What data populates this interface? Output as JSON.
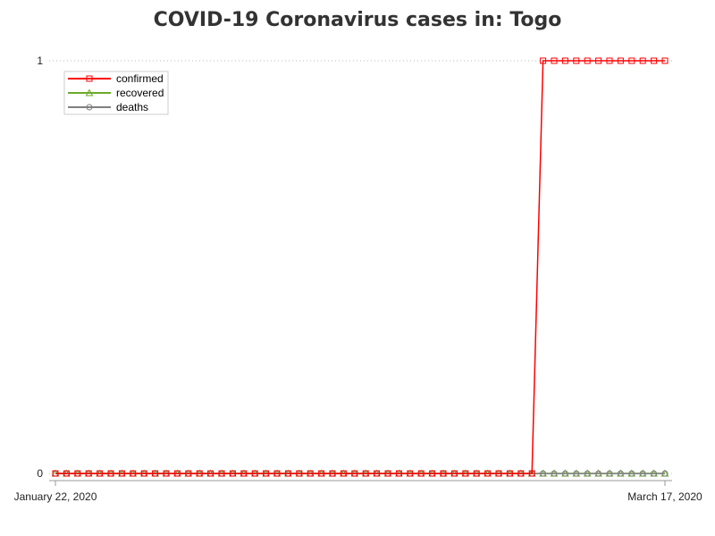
{
  "chart_data": {
    "type": "line",
    "title": "COVID-19 Coronavirus cases in: Togo",
    "xlabel": "",
    "ylabel": "",
    "x_start": "January 22, 2020",
    "x_end": "March 17, 2020",
    "x_tick_labels": [
      "January 22, 2020",
      "March 17, 2020"
    ],
    "ylim": [
      0,
      1
    ],
    "y_ticks": [
      0,
      1
    ],
    "y_tick_labels": [
      "0",
      "1"
    ],
    "legend_position": "top-left",
    "series": [
      {
        "name": "confirmed",
        "color": "#ff0000",
        "marker": "square",
        "values": [
          0,
          0,
          0,
          0,
          0,
          0,
          0,
          0,
          0,
          0,
          0,
          0,
          0,
          0,
          0,
          0,
          0,
          0,
          0,
          0,
          0,
          0,
          0,
          0,
          0,
          0,
          0,
          0,
          0,
          0,
          0,
          0,
          0,
          0,
          0,
          0,
          0,
          0,
          0,
          0,
          0,
          0,
          0,
          0,
          1,
          1,
          1,
          1,
          1,
          1,
          1,
          1,
          1,
          1,
          1,
          1
        ]
      },
      {
        "name": "recovered",
        "color": "#6aaa2a",
        "marker": "triangle",
        "values": [
          0,
          0,
          0,
          0,
          0,
          0,
          0,
          0,
          0,
          0,
          0,
          0,
          0,
          0,
          0,
          0,
          0,
          0,
          0,
          0,
          0,
          0,
          0,
          0,
          0,
          0,
          0,
          0,
          0,
          0,
          0,
          0,
          0,
          0,
          0,
          0,
          0,
          0,
          0,
          0,
          0,
          0,
          0,
          0,
          0,
          0,
          0,
          0,
          0,
          0,
          0,
          0,
          0,
          0,
          0,
          0
        ]
      },
      {
        "name": "deaths",
        "color": "#808080",
        "marker": "circle",
        "values": [
          0,
          0,
          0,
          0,
          0,
          0,
          0,
          0,
          0,
          0,
          0,
          0,
          0,
          0,
          0,
          0,
          0,
          0,
          0,
          0,
          0,
          0,
          0,
          0,
          0,
          0,
          0,
          0,
          0,
          0,
          0,
          0,
          0,
          0,
          0,
          0,
          0,
          0,
          0,
          0,
          0,
          0,
          0,
          0,
          0,
          0,
          0,
          0,
          0,
          0,
          0,
          0,
          0,
          0,
          0,
          0
        ]
      }
    ]
  }
}
